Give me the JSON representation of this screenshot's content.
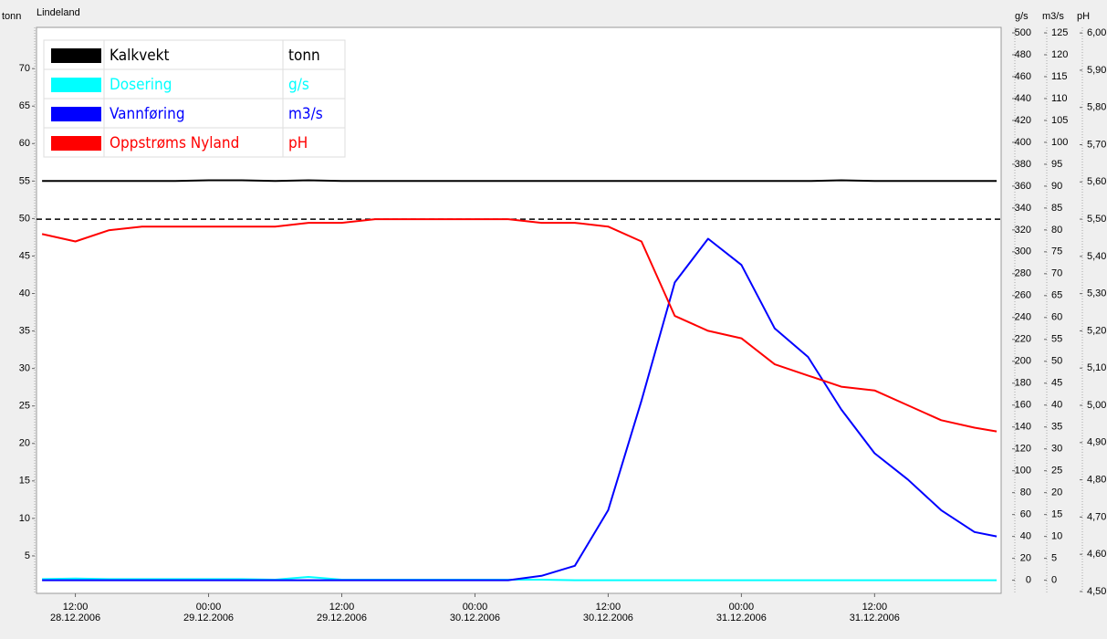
{
  "chart_data": {
    "type": "line",
    "title": "Lindeland",
    "x": [
      9,
      12,
      15,
      18,
      21,
      24,
      27,
      30,
      33,
      36,
      39,
      42,
      45,
      48,
      51,
      54,
      57,
      60,
      63,
      66,
      69,
      72,
      75,
      78,
      81,
      84,
      87,
      90,
      93,
      95
    ],
    "xlim": [
      8.5,
      95.4
    ],
    "xticks": [
      {
        "value": 12,
        "label": [
          "12:00",
          "28.12.2006"
        ]
      },
      {
        "value": 24,
        "label": [
          "00:00",
          "29.12.2006"
        ]
      },
      {
        "value": 36,
        "label": [
          "12:00",
          "29.12.2006"
        ]
      },
      {
        "value": 48,
        "label": [
          "00:00",
          "30.12.2006"
        ]
      },
      {
        "value": 60,
        "label": [
          "12:00",
          "30.12.2006"
        ]
      },
      {
        "value": 72,
        "label": [
          "00:00",
          "31.12.2006"
        ]
      },
      {
        "value": 84,
        "label": [
          "12:00",
          "31.12.2006"
        ]
      }
    ],
    "series": [
      {
        "name": "Kalkvekt",
        "unit": "tonn",
        "color": "#000000",
        "axis": "y",
        "values": [
          55,
          55,
          55,
          55,
          55,
          55.1,
          55.1,
          55,
          55.1,
          55,
          55,
          55,
          55,
          55,
          55,
          55,
          55,
          55,
          55,
          55,
          55,
          55,
          55,
          55,
          55.1,
          55,
          55,
          55,
          55,
          55
        ]
      },
      {
        "name": "Dosering",
        "unit": "g/s",
        "color": "#00ffff",
        "axis": "y2",
        "values": [
          1,
          1.5,
          1,
          1,
          1,
          1,
          1,
          0.5,
          3,
          0.5,
          0.5,
          0.5,
          0.5,
          0.5,
          0.5,
          0.5,
          0,
          0,
          0,
          0,
          0,
          0,
          0,
          0,
          0,
          0,
          0,
          0,
          0,
          0
        ]
      },
      {
        "name": "Vannføring",
        "unit": "m3/s",
        "color": "#0000ff",
        "axis": "y3",
        "values": [
          0,
          0,
          0,
          0,
          0,
          0,
          0,
          0,
          0,
          0,
          0,
          0,
          0,
          0,
          0,
          1,
          3.3,
          16,
          41,
          68,
          78,
          72,
          57.5,
          51,
          39,
          29,
          23,
          16,
          11,
          10
        ]
      },
      {
        "name": "Oppstrøms Nyland",
        "unit": "pH",
        "color": "#ff0000",
        "axis": "y4",
        "values": [
          5.46,
          5.44,
          5.47,
          5.48,
          5.48,
          5.48,
          5.48,
          5.48,
          5.49,
          5.49,
          5.5,
          5.5,
          5.5,
          5.5,
          5.5,
          5.49,
          5.49,
          5.48,
          5.44,
          5.24,
          5.2,
          5.18,
          5.11,
          5.08,
          5.05,
          5.04,
          5,
          4.96,
          4.94,
          4.93
        ]
      }
    ],
    "ylim": [
      0,
      75.5
    ],
    "yticks": [
      5,
      10,
      15,
      20,
      25,
      30,
      35,
      40,
      45,
      50,
      55,
      60,
      65,
      70
    ],
    "y2lim": [
      -12,
      505
    ],
    "y2ticks": [
      0,
      20,
      40,
      60,
      80,
      100,
      120,
      140,
      160,
      180,
      200,
      220,
      240,
      260,
      280,
      300,
      320,
      340,
      360,
      380,
      400,
      420,
      440,
      460,
      480,
      500
    ],
    "y3lim": [
      -3,
      126.25
    ],
    "y3ticks": [
      0,
      5,
      10,
      15,
      20,
      25,
      30,
      35,
      40,
      45,
      50,
      55,
      60,
      65,
      70,
      75,
      80,
      85,
      90,
      95,
      100,
      105,
      110,
      115,
      120,
      125
    ],
    "y4lim": [
      4.495,
      6.015
    ],
    "y4ticks": [
      {
        "value": 4.5,
        "label": "4,50"
      },
      {
        "value": 4.6,
        "label": "4,60"
      },
      {
        "value": 4.7,
        "label": "4,70"
      },
      {
        "value": 4.8,
        "label": "4,80"
      },
      {
        "value": 4.9,
        "label": "4,90"
      },
      {
        "value": 5.0,
        "label": "5,00"
      },
      {
        "value": 5.1,
        "label": "5,10"
      },
      {
        "value": 5.2,
        "label": "5,20"
      },
      {
        "value": 5.3,
        "label": "5,30"
      },
      {
        "value": 5.4,
        "label": "5,40"
      },
      {
        "value": 5.5,
        "label": "5,50"
      },
      {
        "value": 5.6,
        "label": "5,60"
      },
      {
        "value": 5.7,
        "label": "5,70"
      },
      {
        "value": 5.8,
        "label": "5,80"
      },
      {
        "value": 5.9,
        "label": "5,90"
      },
      {
        "value": 6.0,
        "label": "6,00"
      }
    ],
    "reference_line": {
      "axis": "y4",
      "value": 5.5,
      "color": "#000000"
    }
  }
}
